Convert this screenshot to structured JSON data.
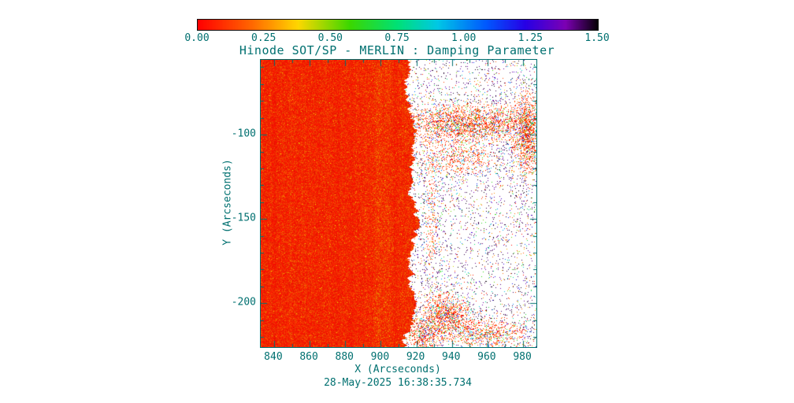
{
  "chart_data": {
    "type": "heatmap",
    "title": "Hinode SOT/SP - MERLIN : Damping Parameter",
    "xlabel": "X (Arcseconds)",
    "ylabel": "Y (Arcseconds)",
    "timestamp": "28-May-2025 16:38:35.734",
    "accent_color": "#007070",
    "x_range": [
      832.5,
      987.5
    ],
    "y_range": [
      -226.0,
      -55.6
    ],
    "x_ticks": [
      840,
      860,
      880,
      900,
      920,
      940,
      960,
      980
    ],
    "x_minor_step": 10,
    "y_ticks": [
      -100,
      -150,
      -200
    ],
    "y_minor_step": 10,
    "colorbar": {
      "range": [
        0.0,
        1.5
      ],
      "tick_labels": [
        "0.00",
        "0.25",
        "0.50",
        "0.75",
        "1.00",
        "1.25",
        "1.50"
      ],
      "orientation": "horizontal",
      "position": "top"
    },
    "colormap_stops": [
      [
        0.0,
        255,
        0,
        0
      ],
      [
        0.13,
        255,
        100,
        0
      ],
      [
        0.25,
        255,
        215,
        0
      ],
      [
        0.38,
        60,
        215,
        0
      ],
      [
        0.5,
        0,
        225,
        120
      ],
      [
        0.6,
        0,
        200,
        230
      ],
      [
        0.72,
        0,
        90,
        255
      ],
      [
        0.82,
        40,
        0,
        230
      ],
      [
        0.92,
        125,
        0,
        180
      ],
      [
        1.0,
        8,
        0,
        8
      ]
    ],
    "content": {
      "description": "Solar disk damping-parameter map at the west limb: saturated red/orange disk on the left, sharp limb edge near x=915-918 arcsec, sparse multicolor noise speckles off-limb on white background.",
      "limb": {
        "x_at_mid": 918.5,
        "curve_center_y": -148,
        "curve_coeff_upper": 0.0004,
        "curve_coeff_lower": 0.0009,
        "jitter_amp": 1.2
      },
      "disk_value_range": [
        0.0,
        0.25
      ],
      "offlimb_base_dot_prob": 0.055,
      "noise_clusters": [
        {
          "cx": 950,
          "cy": -93,
          "sx": 30,
          "sy": 9,
          "amp": 0.45
        },
        {
          "cx": 982,
          "cy": -100,
          "sx": 6,
          "sy": 20,
          "amp": 0.5
        },
        {
          "cx": 945,
          "cy": -115,
          "sx": 18,
          "sy": 8,
          "amp": 0.2
        },
        {
          "cx": 937,
          "cy": -206,
          "sx": 10,
          "sy": 9,
          "amp": 0.5
        },
        {
          "cx": 924,
          "cy": -218,
          "sx": 8,
          "sy": 8,
          "amp": 0.4
        },
        {
          "cx": 958,
          "cy": -218,
          "sx": 20,
          "sy": 7,
          "amp": 0.3
        },
        {
          "cx": 928,
          "cy": -150,
          "sx": 5,
          "sy": 40,
          "amp": 0.12
        }
      ]
    }
  }
}
